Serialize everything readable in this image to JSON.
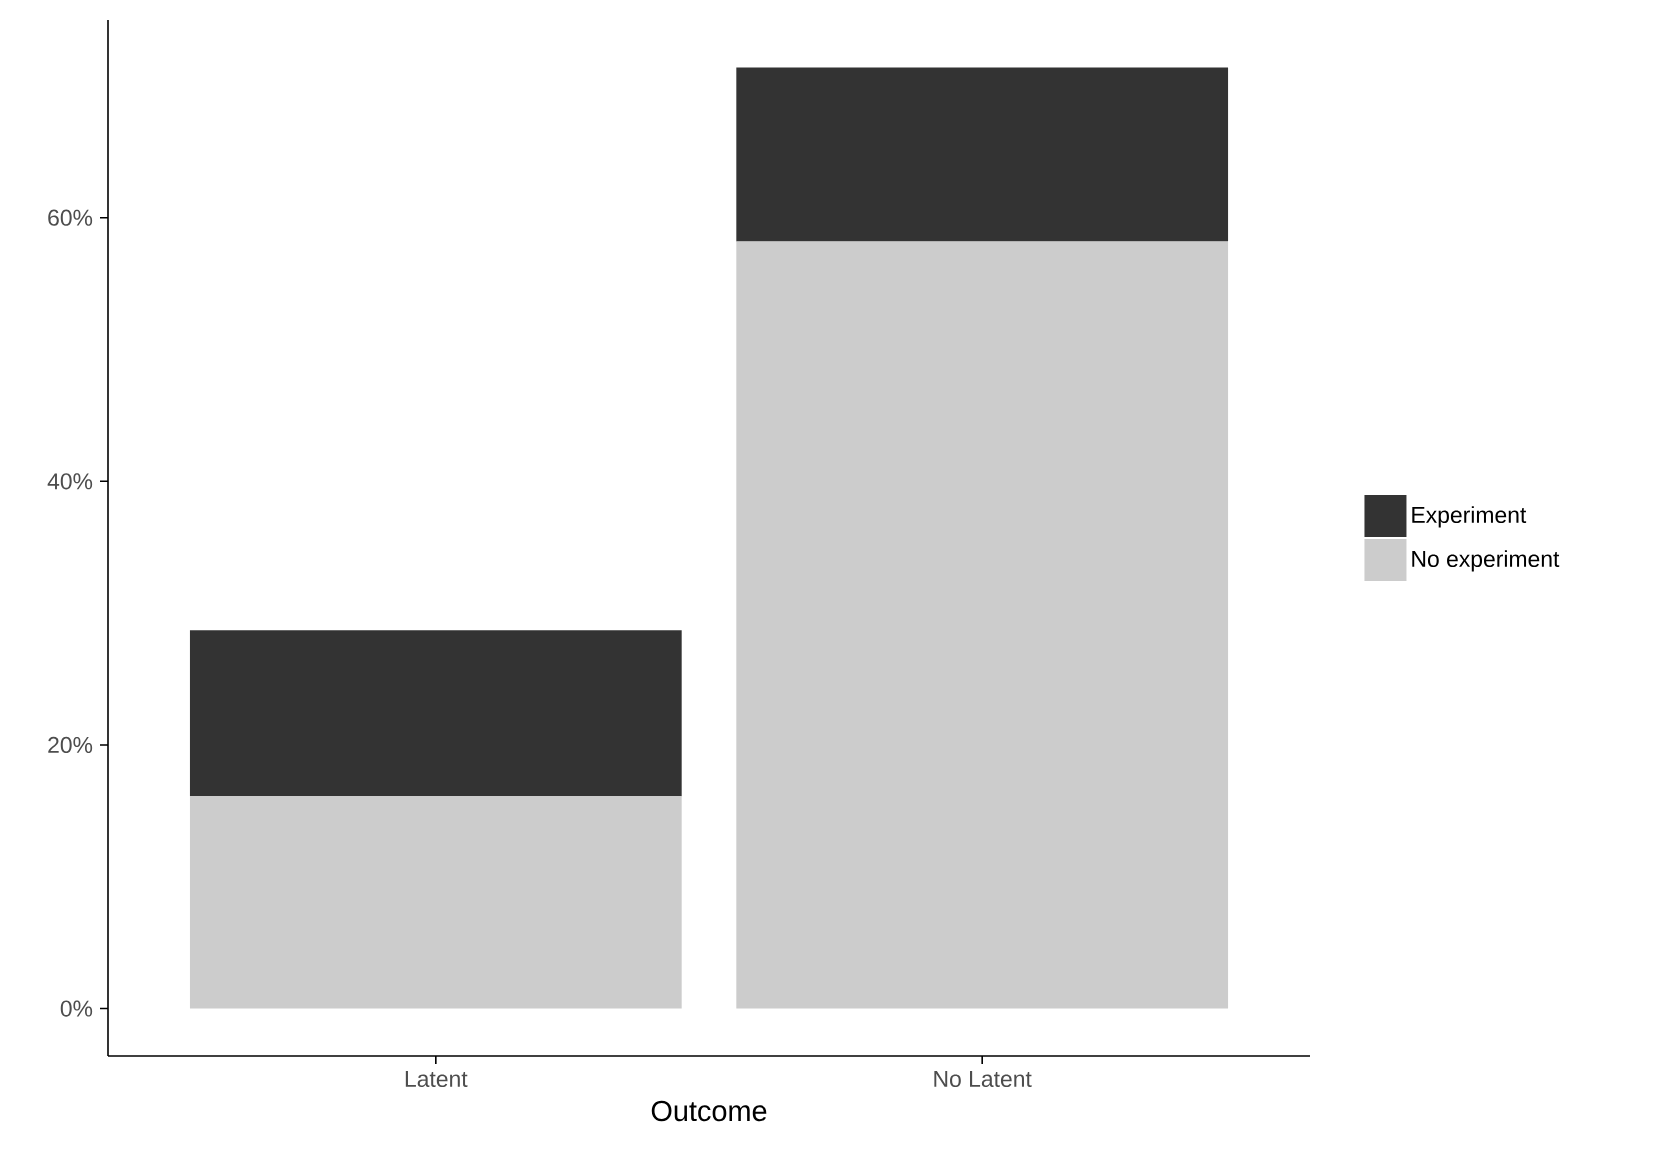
{
  "chart_data": {
    "type": "bar",
    "stacked": true,
    "xlabel": "Outcome",
    "categories": [
      "Latent",
      "No Latent"
    ],
    "series": [
      {
        "name": "No experiment",
        "color": "#cccccc",
        "values": [
          16.1,
          58.2
        ]
      },
      {
        "name": "Experiment",
        "color": "#333333",
        "values": [
          12.6,
          13.2
        ]
      }
    ],
    "ylim": [
      -3.6,
      75
    ],
    "yticks": [
      {
        "value": 0,
        "label": "0%"
      },
      {
        "value": 20,
        "label": "20%"
      },
      {
        "value": 40,
        "label": "40%"
      },
      {
        "value": 60,
        "label": "60%"
      }
    ],
    "legend": "right",
    "grid": false
  }
}
